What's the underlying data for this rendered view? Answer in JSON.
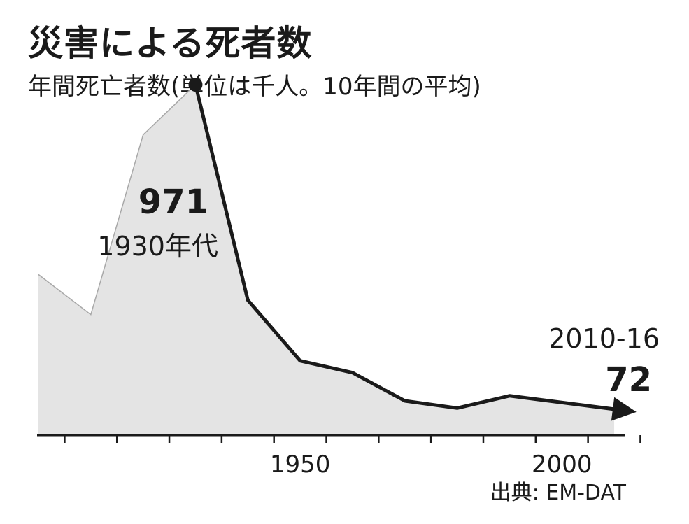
{
  "chart_data": {
    "type": "area",
    "title": "災害による死者数",
    "subtitle": "年間死亡者数(単位は千人。10年間の平均)",
    "x": [
      1900,
      1910,
      1920,
      1930,
      1940,
      1950,
      1960,
      1970,
      1980,
      1990,
      2010
    ],
    "values": [
      445,
      334,
      832,
      971,
      374,
      206,
      173,
      95,
      75,
      109,
      72
    ],
    "highlight_start_index": 3,
    "xlim": [
      1900,
      2012
    ],
    "ylim": [
      0,
      1000
    ],
    "x_ticks": [
      1905,
      1915,
      1925,
      1935,
      1945,
      1955,
      1965,
      1975,
      1985,
      1995,
      2005,
      2015
    ],
    "x_tick_labels": [
      {
        "value": 1950,
        "label": "1950"
      },
      {
        "value": 2000,
        "label": "2000"
      }
    ],
    "annotations": [
      {
        "value": "971",
        "label": "1930年代"
      },
      {
        "value": "72",
        "label": "2010-16"
      }
    ],
    "source": "出典: EM-DAT",
    "colors": {
      "area": "#e4e4e4",
      "area_edge": "#a8a8a8",
      "line": "#1a1a1a"
    }
  }
}
